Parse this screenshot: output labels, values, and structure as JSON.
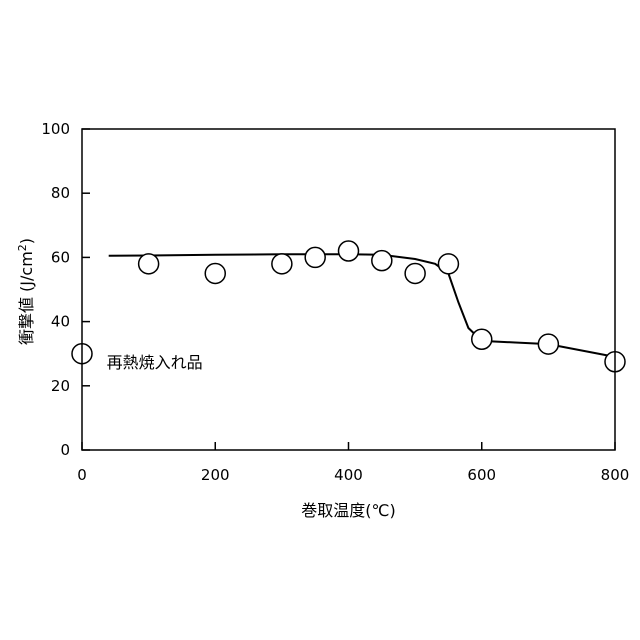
{
  "chart_data": {
    "type": "scatter",
    "title": "",
    "xlabel": "巻取温度(℃)",
    "ylabel_main": "衝撃値 (J/cm",
    "ylabel_sup": "2",
    "ylabel_close": ")",
    "xlim": [
      0,
      800
    ],
    "ylim": [
      0,
      100
    ],
    "xticks": [
      0,
      200,
      400,
      600,
      800
    ],
    "yticks": [
      0,
      20,
      40,
      60,
      80,
      100
    ],
    "grid": false,
    "series": [
      {
        "marker": "open-circle",
        "x": [
          0,
          100,
          200,
          300,
          350,
          400,
          450,
          500,
          550,
          600,
          700,
          800
        ],
        "y": [
          30,
          58,
          55,
          58,
          60,
          62,
          59,
          55,
          58,
          34.5,
          33,
          27.5
        ]
      }
    ],
    "trend_line": {
      "x": [
        40,
        100,
        200,
        300,
        350,
        400,
        450,
        500,
        530,
        550,
        565,
        580,
        600,
        650,
        700,
        750,
        800
      ],
      "y": [
        60.5,
        60.6,
        60.8,
        61,
        61,
        61,
        60.8,
        59.5,
        58,
        55,
        46,
        38,
        34,
        33.5,
        33,
        31,
        29
      ]
    },
    "annotations": [
      {
        "text": "再熱焼入れ品",
        "x": 37,
        "y": 25.5
      }
    ]
  }
}
